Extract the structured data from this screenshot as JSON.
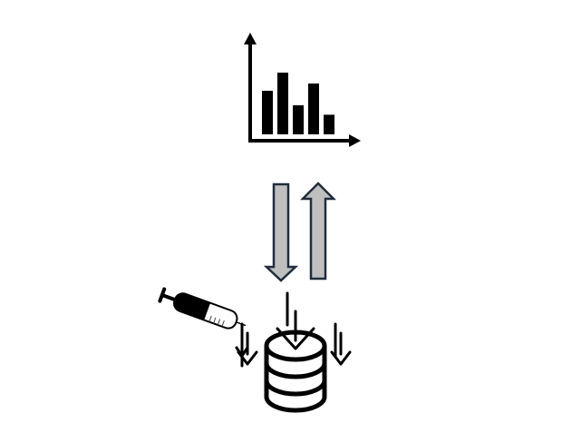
{
  "diagram": {
    "nodes": [
      {
        "id": "analytics",
        "icon": "bar-chart-icon"
      },
      {
        "id": "storage",
        "icon": "database-icon"
      },
      {
        "id": "injection",
        "icon": "syringe-icon"
      }
    ],
    "edges": [
      {
        "from": "storage",
        "to": "analytics",
        "icon": "up-arrow-icon"
      },
      {
        "from": "analytics",
        "to": "storage",
        "icon": "down-arrow-icon"
      }
    ],
    "bar_chart_icon": {
      "relative_bar_heights": [
        0.6,
        0.85,
        0.4,
        0.7,
        0.27
      ]
    },
    "colors": {
      "stroke": "#000000",
      "arrow_fill": "#bfbfbf",
      "arrow_outline": "#1f2d3d",
      "background": "#ffffff"
    }
  }
}
